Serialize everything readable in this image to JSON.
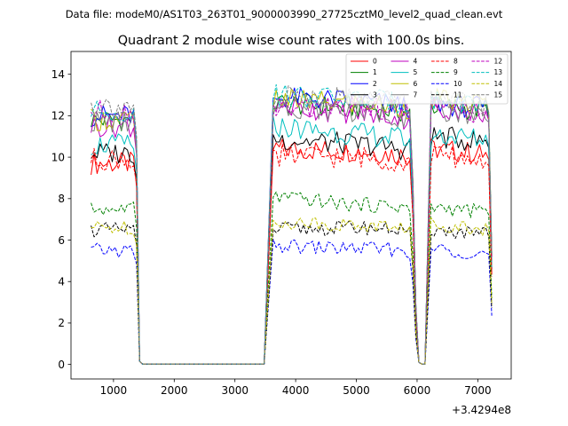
{
  "header": {
    "data_file": "Data file: modeM0/AS1T03_263T01_9000003990_27725cztM0_level2_quad_clean.evt"
  },
  "chart_data": {
    "type": "line",
    "title": "Quadrant 2 module wise count rates with 100.0s bins.",
    "xlabel": "",
    "ylabel": "",
    "x_offset_label": "+3.4294e8",
    "xlim": [
      300,
      7550
    ],
    "ylim": [
      -0.7,
      15.1
    ],
    "xticks": [
      1000,
      2000,
      3000,
      4000,
      5000,
      6000,
      7000
    ],
    "xtick_labels": [
      "1000",
      "2000",
      "3000",
      "4000",
      "5000",
      "6000",
      "7000"
    ],
    "yticks": [
      0,
      2,
      4,
      6,
      8,
      10,
      12,
      14
    ],
    "ytick_labels": [
      "0",
      "2",
      "4",
      "6",
      "8",
      "10",
      "12",
      "14"
    ],
    "grid": false,
    "legend": {
      "position": "top-right",
      "columns": 4
    },
    "segments": [
      {
        "start": 630,
        "end": 1430,
        "step": 50
      },
      {
        "start": 1480,
        "end": 3530,
        "step": 100
      },
      {
        "start": 3630,
        "end": 6030,
        "step": 50
      },
      {
        "start": 6080,
        "end": 6130,
        "step": 50
      },
      {
        "start": 6230,
        "end": 7230,
        "step": 50
      }
    ],
    "series": [
      {
        "name": "0",
        "color": "#ff0000",
        "dash": "solid",
        "levels": [
          9.7,
          10.4,
          10.3,
          10.4
        ]
      },
      {
        "name": "1",
        "color": "#008000",
        "dash": "solid",
        "levels": [
          11.8,
          12.6,
          12.4,
          12.5
        ]
      },
      {
        "name": "2",
        "color": "#0000ff",
        "dash": "solid",
        "levels": [
          12.0,
          12.9,
          12.7,
          12.6
        ]
      },
      {
        "name": "3",
        "color": "#000000",
        "dash": "solid",
        "levels": [
          10.2,
          10.9,
          10.6,
          11.0
        ]
      },
      {
        "name": "4",
        "color": "#bf00bf",
        "dash": "solid",
        "levels": [
          11.5,
          12.5,
          12.1,
          12.4
        ]
      },
      {
        "name": "5",
        "color": "#00bfbf",
        "dash": "solid",
        "levels": [
          10.6,
          11.5,
          11.1,
          11.1
        ]
      },
      {
        "name": "6",
        "color": "#bfbf00",
        "dash": "solid",
        "levels": [
          11.8,
          12.8,
          12.6,
          12.8
        ]
      },
      {
        "name": "7",
        "color": "#808080",
        "dash": "solid",
        "levels": [
          11.7,
          12.5,
          12.2,
          12.3
        ]
      },
      {
        "name": "8",
        "color": "#ff0000",
        "dash": "dashed",
        "levels": [
          9.9,
          10.1,
          10.0,
          10.1
        ]
      },
      {
        "name": "9",
        "color": "#008000",
        "dash": "dashed",
        "levels": [
          7.5,
          8.1,
          7.7,
          7.6
        ]
      },
      {
        "name": "10",
        "color": "#0000ff",
        "dash": "dashed",
        "levels": [
          5.5,
          5.7,
          5.6,
          5.6
        ]
      },
      {
        "name": "11",
        "color": "#000000",
        "dash": "dashed",
        "levels": [
          6.5,
          6.5,
          6.6,
          6.5
        ]
      },
      {
        "name": "12",
        "color": "#bf00bf",
        "dash": "dashed",
        "levels": [
          12.2,
          12.3,
          12.4,
          12.4
        ]
      },
      {
        "name": "13",
        "color": "#00bfbf",
        "dash": "dashed",
        "levels": [
          12.2,
          13.0,
          12.8,
          12.8
        ]
      },
      {
        "name": "14",
        "color": "#bfbf00",
        "dash": "dashed",
        "levels": [
          6.6,
          6.9,
          6.7,
          6.8
        ]
      },
      {
        "name": "15",
        "color": "#808080",
        "dash": "dashed",
        "levels": [
          12.5,
          12.9,
          12.9,
          12.7
        ]
      }
    ]
  }
}
